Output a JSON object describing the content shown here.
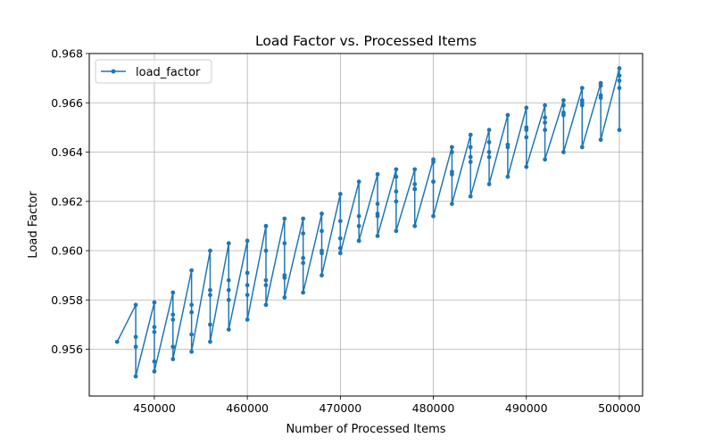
{
  "chart_data": {
    "type": "line",
    "title": "Load Factor vs. Processed Items",
    "xlabel": "Number of Processed Items",
    "ylabel": "Load Factor",
    "xlim": [
      443000,
      502500
    ],
    "ylim": [
      0.9541,
      0.968
    ],
    "xticks": [
      450000,
      460000,
      470000,
      480000,
      490000,
      500000
    ],
    "yticks": [
      0.956,
      0.958,
      0.96,
      0.962,
      0.964,
      0.966,
      0.968
    ],
    "grid": true,
    "legend_position": "upper left",
    "series": [
      {
        "name": "load_factor",
        "color": "#1f77b4",
        "marker": "circle",
        "x": [
          446000,
          448000,
          448000,
          448000,
          448000,
          450000,
          450000,
          450000,
          450000,
          450000,
          452000,
          452000,
          452000,
          452000,
          452000,
          454000,
          454000,
          454000,
          454000,
          454000,
          456000,
          456000,
          456000,
          456000,
          456000,
          458000,
          458000,
          458000,
          458000,
          458000,
          460000,
          460000,
          460000,
          460000,
          460000,
          462000,
          462000,
          462000,
          462000,
          462000,
          464000,
          464000,
          464000,
          464000,
          464000,
          466000,
          466000,
          466000,
          466000,
          466000,
          468000,
          468000,
          468000,
          468000,
          468000,
          470000,
          470000,
          470000,
          470000,
          470000,
          472000,
          472000,
          472000,
          472000,
          472000,
          474000,
          474000,
          474000,
          474000,
          474000,
          476000,
          476000,
          476000,
          476000,
          476000,
          478000,
          478000,
          478000,
          478000,
          478000,
          480000,
          480000,
          480000,
          480000,
          480000,
          482000,
          482000,
          482000,
          482000,
          482000,
          484000,
          484000,
          484000,
          484000,
          484000,
          486000,
          486000,
          486000,
          486000,
          486000,
          488000,
          488000,
          488000,
          488000,
          488000,
          490000,
          490000,
          490000,
          490000,
          490000,
          492000,
          492000,
          492000,
          492000,
          492000,
          494000,
          494000,
          494000,
          494000,
          494000,
          496000,
          496000,
          496000,
          496000,
          496000,
          498000,
          498000,
          498000,
          498000,
          498000,
          500000,
          500000,
          500000,
          500000,
          500000
        ],
        "y": [
          0.9563,
          0.9578,
          0.9565,
          0.9561,
          0.9549,
          0.9579,
          0.9569,
          0.9567,
          0.9555,
          0.9551,
          0.9583,
          0.9574,
          0.9572,
          0.9561,
          0.9556,
          0.9592,
          0.9578,
          0.9575,
          0.9566,
          0.9559,
          0.96,
          0.9584,
          0.9582,
          0.957,
          0.9563,
          0.9603,
          0.9588,
          0.9584,
          0.958,
          0.9568,
          0.9604,
          0.9591,
          0.9586,
          0.9582,
          0.9572,
          0.961,
          0.96,
          0.9588,
          0.9586,
          0.9578,
          0.9613,
          0.9603,
          0.959,
          0.9589,
          0.9581,
          0.9613,
          0.9607,
          0.9597,
          0.9595,
          0.9583,
          0.9615,
          0.9608,
          0.9599,
          0.96,
          0.959,
          0.9623,
          0.9612,
          0.9605,
          0.9601,
          0.9599,
          0.9628,
          0.9614,
          0.961,
          0.9604,
          0.9604,
          0.9631,
          0.9619,
          0.9615,
          0.9614,
          0.9606,
          0.9633,
          0.963,
          0.9624,
          0.962,
          0.9608,
          0.9633,
          0.9627,
          0.9625,
          0.9625,
          0.961,
          0.9637,
          0.9636,
          0.9628,
          0.9628,
          0.9614,
          0.9642,
          0.964,
          0.9632,
          0.9631,
          0.9619,
          0.9647,
          0.9642,
          0.9638,
          0.9636,
          0.9622,
          0.9649,
          0.9644,
          0.964,
          0.9638,
          0.9627,
          0.9655,
          0.9643,
          0.9643,
          0.9642,
          0.963,
          0.9658,
          0.965,
          0.9649,
          0.9646,
          0.9634,
          0.9659,
          0.9654,
          0.9652,
          0.9649,
          0.9637,
          0.9661,
          0.9659,
          0.9656,
          0.9655,
          0.964,
          0.9666,
          0.9661,
          0.966,
          0.9659,
          0.9642,
          0.9668,
          0.9667,
          0.9663,
          0.9662,
          0.9645,
          0.9674,
          0.9671,
          0.9669,
          0.9666,
          0.9649
        ]
      }
    ]
  }
}
